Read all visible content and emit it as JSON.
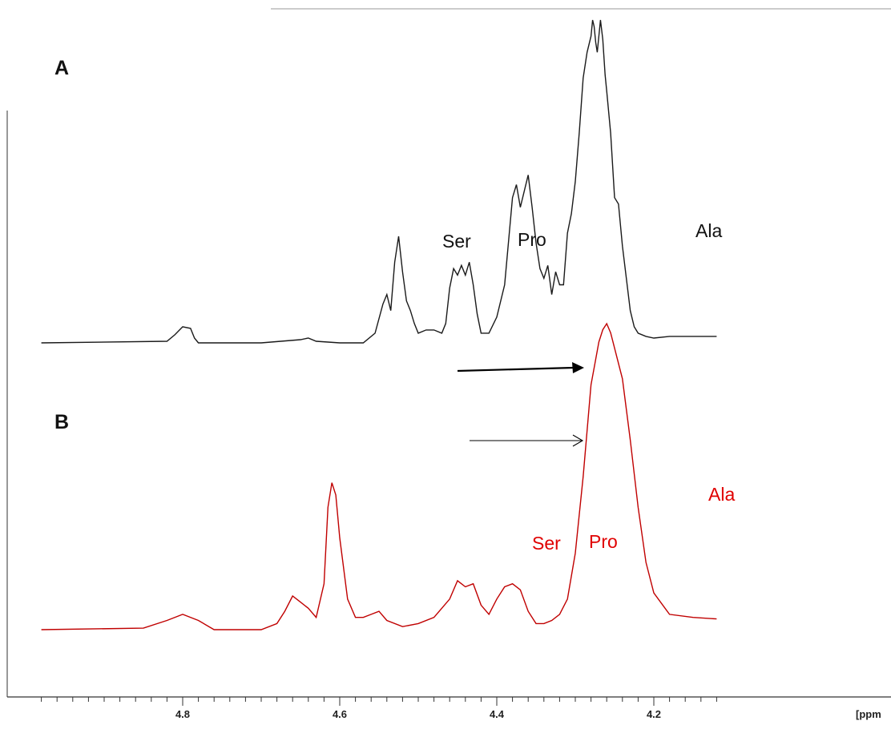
{
  "panels": [
    {
      "id": "A",
      "label": "A"
    },
    {
      "id": "B",
      "label": "B"
    }
  ],
  "axis": {
    "unit_label": "[ppm",
    "ticks": [
      {
        "value": 4.8,
        "label": "4.8"
      },
      {
        "value": 4.6,
        "label": "4.6"
      },
      {
        "value": 4.4,
        "label": "4.4"
      },
      {
        "value": 4.2,
        "label": "4.2"
      }
    ]
  },
  "peak_labels": {
    "A": [
      {
        "text": "Ser",
        "ppm": 4.52
      },
      {
        "text": "Pro",
        "ppm": 4.44
      },
      {
        "text": "Ala",
        "ppm": 4.27
      }
    ],
    "B": [
      {
        "text": "Ser",
        "ppm": 4.44
      },
      {
        "text": "Pro",
        "ppm": 4.38
      },
      {
        "text": "Ala",
        "ppm": 4.26
      }
    ]
  },
  "colors": {
    "spectrum_A": "#1a1a1a",
    "spectrum_B": "#c00000",
    "labels_A": "#111111",
    "labels_B": "#e00000",
    "axis": "#333333"
  },
  "chart_data": [
    {
      "type": "line",
      "title": "A",
      "xlabel": "[ppm",
      "xlim": [
        4.98,
        4.12
      ],
      "x_reversed": true,
      "ylim": [
        0,
        1
      ],
      "grid": false,
      "series": [
        {
          "x": [
            4.98,
            4.82,
            4.81,
            4.8,
            4.79,
            4.785,
            4.78,
            4.7,
            4.65,
            4.64,
            4.63,
            4.6,
            4.57,
            4.555,
            4.545,
            4.54,
            4.535,
            4.53,
            4.525,
            4.52,
            4.515,
            4.51,
            4.505,
            4.5,
            4.49,
            4.48,
            4.47,
            4.465,
            4.46,
            4.455,
            4.45,
            4.445,
            4.44,
            4.435,
            4.43,
            4.425,
            4.42,
            4.41,
            4.4,
            4.39,
            4.38,
            4.375,
            4.37,
            4.365,
            4.36,
            4.355,
            4.35,
            4.345,
            4.34,
            4.335,
            4.33,
            4.325,
            4.32,
            4.315,
            4.31,
            4.305,
            4.3,
            4.295,
            4.29,
            4.285,
            4.28,
            4.278,
            4.276,
            4.274,
            4.272,
            4.27,
            4.268,
            4.265,
            4.262,
            4.26,
            4.255,
            4.25,
            4.245,
            4.24,
            4.235,
            4.23,
            4.225,
            4.22,
            4.21,
            4.2,
            4.18,
            4.15,
            4.12
          ],
          "y": [
            0.0,
            0.005,
            0.025,
            0.05,
            0.045,
            0.015,
            0.0,
            0.0,
            0.01,
            0.015,
            0.005,
            0.0,
            0.0,
            0.03,
            0.12,
            0.15,
            0.1,
            0.25,
            0.33,
            0.22,
            0.13,
            0.1,
            0.06,
            0.03,
            0.04,
            0.04,
            0.03,
            0.06,
            0.17,
            0.23,
            0.21,
            0.24,
            0.21,
            0.25,
            0.18,
            0.09,
            0.03,
            0.03,
            0.08,
            0.18,
            0.45,
            0.49,
            0.42,
            0.47,
            0.52,
            0.42,
            0.31,
            0.23,
            0.2,
            0.24,
            0.15,
            0.22,
            0.18,
            0.18,
            0.34,
            0.4,
            0.5,
            0.65,
            0.82,
            0.9,
            0.95,
            1.0,
            0.98,
            0.93,
            0.9,
            0.95,
            1.0,
            0.94,
            0.83,
            0.78,
            0.65,
            0.45,
            0.43,
            0.3,
            0.2,
            0.1,
            0.05,
            0.03,
            0.02,
            0.015,
            0.02,
            0.02,
            0.02
          ]
        }
      ]
    },
    {
      "type": "line",
      "title": "B",
      "xlabel": "[ppm",
      "xlim": [
        4.98,
        4.12
      ],
      "x_reversed": true,
      "ylim": [
        0,
        1
      ],
      "grid": false,
      "series": [
        {
          "x": [
            4.98,
            4.85,
            4.82,
            4.8,
            4.78,
            4.76,
            4.7,
            4.68,
            4.67,
            4.66,
            4.65,
            4.64,
            4.63,
            4.62,
            4.615,
            4.61,
            4.605,
            4.6,
            4.59,
            4.58,
            4.57,
            4.56,
            4.55,
            4.54,
            4.52,
            4.5,
            4.48,
            4.46,
            4.45,
            4.44,
            4.43,
            4.42,
            4.41,
            4.4,
            4.39,
            4.38,
            4.37,
            4.36,
            4.35,
            4.34,
            4.33,
            4.32,
            4.31,
            4.3,
            4.29,
            4.28,
            4.275,
            4.27,
            4.265,
            4.26,
            4.255,
            4.25,
            4.24,
            4.23,
            4.22,
            4.21,
            4.2,
            4.18,
            4.15,
            4.12
          ],
          "y": [
            0.0,
            0.005,
            0.03,
            0.05,
            0.03,
            0.0,
            0.0,
            0.02,
            0.06,
            0.11,
            0.09,
            0.07,
            0.04,
            0.15,
            0.4,
            0.48,
            0.44,
            0.3,
            0.1,
            0.04,
            0.04,
            0.05,
            0.06,
            0.03,
            0.01,
            0.02,
            0.04,
            0.1,
            0.16,
            0.14,
            0.15,
            0.08,
            0.05,
            0.1,
            0.14,
            0.15,
            0.13,
            0.06,
            0.02,
            0.02,
            0.03,
            0.05,
            0.1,
            0.25,
            0.5,
            0.8,
            0.87,
            0.94,
            0.98,
            1.0,
            0.97,
            0.92,
            0.82,
            0.62,
            0.4,
            0.22,
            0.12,
            0.05,
            0.04,
            0.035
          ]
        }
      ]
    }
  ]
}
